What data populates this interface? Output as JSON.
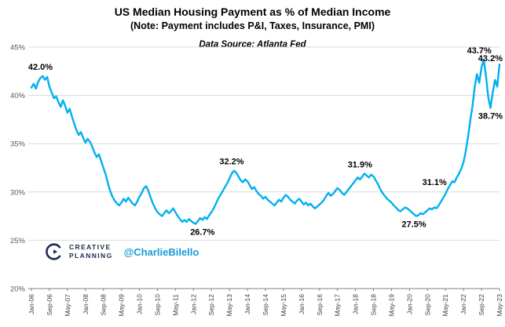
{
  "header": {
    "title": "US Median Housing Payment as % of Median Income",
    "subtitle": "(Note: Payment includes P&I, Taxes, Insurance, PMI)",
    "data_source": "Data Source: Atlanta Fed"
  },
  "branding": {
    "logo_line1": "CREATIVE",
    "logo_line2": "PLANNING",
    "handle": "@CharlieBilello"
  },
  "chart_data": {
    "type": "line",
    "title": "US Median Housing Payment as % of Median Income",
    "xlabel": "",
    "ylabel": "",
    "x_start": "Jan-06",
    "x_end": "May-23",
    "frequency": "monthly",
    "ylim": [
      20,
      45
    ],
    "y_ticks": [
      20,
      25,
      30,
      35,
      40,
      45
    ],
    "y_tick_suffix": "%",
    "grid": "horizontal",
    "legend_position": "none",
    "x_tick_every": 8,
    "x_tick_labels": [
      "Jan-06",
      "Sep-06",
      "May-07",
      "Jan-08",
      "Sep-08",
      "May-09",
      "Jan-10",
      "Sep-10",
      "May-11",
      "Jan-12",
      "Sep-12",
      "May-13",
      "Jan-14",
      "Sep-14",
      "May-15",
      "Jan-16",
      "Sep-16",
      "May-17",
      "Jan-18",
      "Sep-18",
      "May-19",
      "Jan-20",
      "Sep-20",
      "May-21",
      "Jan-22",
      "Sep-22",
      "May-23"
    ],
    "series_name": "US Median Housing Payment as % of Median Income",
    "values": [
      40.8,
      41.2,
      40.7,
      41.4,
      41.8,
      42.0,
      41.6,
      41.9,
      40.9,
      40.3,
      39.7,
      39.9,
      39.3,
      38.8,
      39.5,
      38.9,
      38.2,
      38.6,
      37.8,
      37.1,
      36.4,
      35.9,
      36.2,
      35.6,
      35.1,
      35.5,
      35.2,
      34.7,
      34.1,
      33.6,
      33.9,
      33.2,
      32.5,
      31.8,
      30.9,
      30.1,
      29.5,
      29.1,
      28.8,
      28.6,
      28.9,
      29.3,
      29.0,
      29.4,
      29.1,
      28.8,
      28.6,
      29.0,
      29.5,
      29.9,
      30.4,
      30.6,
      30.1,
      29.4,
      28.8,
      28.3,
      27.9,
      27.7,
      27.5,
      27.8,
      28.1,
      27.8,
      28.0,
      28.3,
      27.9,
      27.5,
      27.2,
      26.9,
      27.1,
      26.9,
      27.2,
      27.0,
      26.8,
      26.7,
      27.0,
      27.3,
      27.1,
      27.4,
      27.2,
      27.6,
      27.9,
      28.3,
      28.8,
      29.3,
      29.7,
      30.1,
      30.5,
      30.9,
      31.4,
      31.9,
      32.2,
      32.0,
      31.6,
      31.2,
      31.0,
      31.3,
      31.1,
      30.7,
      30.3,
      30.5,
      30.1,
      29.8,
      29.6,
      29.3,
      29.5,
      29.2,
      29.0,
      28.8,
      28.6,
      28.9,
      29.2,
      29.0,
      29.4,
      29.7,
      29.5,
      29.2,
      29.0,
      28.8,
      29.1,
      29.3,
      29.0,
      28.7,
      28.9,
      28.6,
      28.8,
      28.5,
      28.3,
      28.5,
      28.7,
      28.9,
      29.2,
      29.6,
      29.9,
      29.6,
      29.8,
      30.1,
      30.4,
      30.2,
      29.9,
      29.7,
      30.0,
      30.3,
      30.6,
      30.9,
      31.2,
      31.5,
      31.3,
      31.6,
      31.9,
      31.7,
      31.5,
      31.8,
      31.6,
      31.2,
      30.8,
      30.3,
      29.9,
      29.6,
      29.3,
      29.1,
      28.9,
      28.6,
      28.4,
      28.1,
      28.0,
      28.2,
      28.4,
      28.3,
      28.1,
      27.9,
      27.7,
      27.5,
      27.6,
      27.8,
      27.7,
      27.9,
      28.1,
      28.3,
      28.2,
      28.4,
      28.3,
      28.6,
      29.0,
      29.4,
      29.8,
      30.3,
      30.7,
      31.1,
      31.0,
      31.5,
      31.9,
      32.4,
      33.1,
      34.2,
      35.7,
      37.4,
      38.9,
      40.9,
      42.2,
      41.3,
      42.9,
      43.7,
      42.0,
      39.8,
      38.7,
      40.3,
      41.6,
      40.9,
      43.2
    ],
    "annotations": [
      {
        "label": "42.0%",
        "index": 4,
        "value": 42.0,
        "pos": "above"
      },
      {
        "label": "26.7%",
        "index": 76,
        "value": 26.7,
        "pos": "below"
      },
      {
        "label": "32.2%",
        "index": 89,
        "value": 32.2,
        "pos": "above"
      },
      {
        "label": "31.9%",
        "index": 146,
        "value": 31.9,
        "pos": "above"
      },
      {
        "label": "27.5%",
        "index": 170,
        "value": 27.5,
        "pos": "below"
      },
      {
        "label": "31.1%",
        "index": 187,
        "value": 31.1,
        "pos": "left"
      },
      {
        "label": "43.7%",
        "index": 199,
        "value": 43.7,
        "pos": "above"
      },
      {
        "label": "38.7%",
        "index": 204,
        "value": 38.7,
        "pos": "below"
      },
      {
        "label": "43.2%",
        "index": 208,
        "value": 43.2,
        "pos": "end"
      }
    ],
    "colors": {
      "line": "#00B0F0",
      "grid": "#D9D9D9",
      "axis": "#808080",
      "annotation": "#000000",
      "logo_navy": "#1F2B4D",
      "handle_blue": "#1A9AD6"
    }
  }
}
